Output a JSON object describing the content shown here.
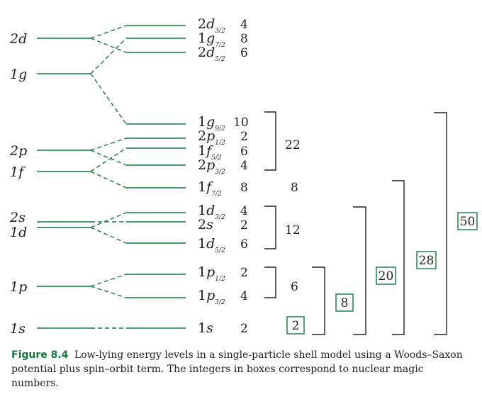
{
  "colors": {
    "accent": "#127a3a",
    "text": "#222222"
  },
  "left_levels": [
    {
      "key": "2d",
      "name": "2d"
    },
    {
      "key": "1g",
      "name": "1g"
    },
    {
      "key": "2p",
      "name": "2p"
    },
    {
      "key": "1f",
      "name": "1f"
    },
    {
      "key": "2s",
      "name": "2s"
    },
    {
      "key": "1d",
      "name": "1d"
    },
    {
      "key": "1p",
      "name": "1p"
    },
    {
      "key": "1s",
      "name": "1s"
    }
  ],
  "right_levels": [
    {
      "key": "2d32",
      "from": "2d",
      "n": "2",
      "l": "d",
      "j": "3/2",
      "degeneracy": "4"
    },
    {
      "key": "1g72",
      "from": "1g",
      "n": "1",
      "l": "g",
      "j": "7/2",
      "degeneracy": "8"
    },
    {
      "key": "2d52",
      "from": "2d",
      "n": "2",
      "l": "d",
      "j": "5/2",
      "degeneracy": "6"
    },
    {
      "key": "1g92",
      "from": "1g",
      "n": "1",
      "l": "g",
      "j": "9/2",
      "degeneracy": "10"
    },
    {
      "key": "2p12",
      "from": "2p",
      "n": "2",
      "l": "p",
      "j": "1/2",
      "degeneracy": "2"
    },
    {
      "key": "1f52",
      "from": "1f",
      "n": "1",
      "l": "f",
      "j": "5/2",
      "degeneracy": "6"
    },
    {
      "key": "2p32",
      "from": "2p",
      "n": "2",
      "l": "p",
      "j": "3/2",
      "degeneracy": "4"
    },
    {
      "key": "1f72",
      "from": "1f",
      "n": "1",
      "l": "f",
      "j": "7/2",
      "degeneracy": "8"
    },
    {
      "key": "1d32",
      "from": "1d",
      "n": "1",
      "l": "d",
      "j": "3/2",
      "degeneracy": "4"
    },
    {
      "key": "2s",
      "from": "2s",
      "n": "2",
      "l": "s",
      "j": "",
      "degeneracy": "2"
    },
    {
      "key": "1d52",
      "from": "1d",
      "n": "1",
      "l": "d",
      "j": "5/2",
      "degeneracy": "6"
    },
    {
      "key": "1p12",
      "from": "1p",
      "n": "1",
      "l": "p",
      "j": "1/2",
      "degeneracy": "2"
    },
    {
      "key": "1p32",
      "from": "1p",
      "n": "1",
      "l": "p",
      "j": "3/2",
      "degeneracy": "4"
    },
    {
      "key": "1s",
      "from": "1s",
      "n": "1",
      "l": "s",
      "j": "",
      "degeneracy": "2"
    }
  ],
  "shell_totals": [
    "22",
    "8",
    "12",
    "6"
  ],
  "magic_numbers": [
    "2",
    "8",
    "20",
    "28",
    "50"
  ],
  "caption": {
    "label": "Figure 8.4",
    "text": "Low-lying energy levels in a single-particle shell model using a Woods–Saxon potential plus spin–orbit term. The integers in boxes correspond to nuclear magic numbers."
  }
}
